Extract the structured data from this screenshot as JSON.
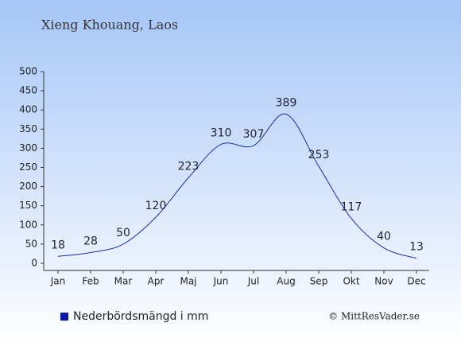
{
  "chart_data": {
    "type": "line",
    "title": "Xieng Khouang, Laos",
    "categories": [
      "Jan",
      "Feb",
      "Mar",
      "Apr",
      "Maj",
      "Jun",
      "Jul",
      "Aug",
      "Sep",
      "Okt",
      "Nov",
      "Dec"
    ],
    "series": [
      {
        "name": "Nederbördsmängd i mm",
        "color": "#1a2fa8",
        "values": [
          18,
          28,
          50,
          120,
          223,
          310,
          307,
          389,
          253,
          117,
          40,
          13
        ]
      }
    ],
    "ylim": [
      0,
      500
    ],
    "yticks": [
      0,
      50,
      100,
      150,
      200,
      250,
      300,
      350,
      400,
      450,
      500
    ],
    "source": "© MittResVader.se"
  }
}
